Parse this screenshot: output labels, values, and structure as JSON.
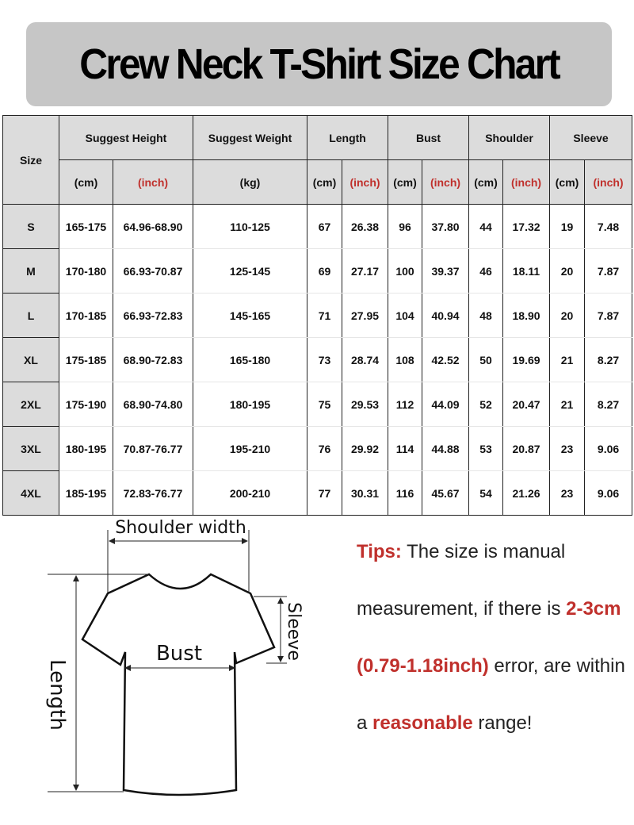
{
  "title": "Crew Neck T-Shirt Size Chart",
  "table": {
    "size_header": "Size",
    "groups": [
      "Suggest Height",
      "Suggest Weight",
      "Length",
      "Bust",
      "Shoulder",
      "Sleeve"
    ],
    "units": [
      "(cm)",
      "(inch)",
      "(kg)",
      "(cm)",
      "(inch)",
      "(cm)",
      "(inch)",
      "(cm)",
      "(inch)",
      "(cm)",
      "(inch)"
    ],
    "rows": [
      [
        "S",
        "165-175",
        "64.96-68.90",
        "110-125",
        "67",
        "26.38",
        "96",
        "37.80",
        "44",
        "17.32",
        "19",
        "7.48"
      ],
      [
        "M",
        "170-180",
        "66.93-70.87",
        "125-145",
        "69",
        "27.17",
        "100",
        "39.37",
        "46",
        "18.11",
        "20",
        "7.87"
      ],
      [
        "L",
        "170-185",
        "66.93-72.83",
        "145-165",
        "71",
        "27.95",
        "104",
        "40.94",
        "48",
        "18.90",
        "20",
        "7.87"
      ],
      [
        "XL",
        "175-185",
        "68.90-72.83",
        "165-180",
        "73",
        "28.74",
        "108",
        "42.52",
        "50",
        "19.69",
        "21",
        "8.27"
      ],
      [
        "2XL",
        "175-190",
        "68.90-74.80",
        "180-195",
        "75",
        "29.53",
        "112",
        "44.09",
        "52",
        "20.47",
        "21",
        "8.27"
      ],
      [
        "3XL",
        "180-195",
        "70.87-76.77",
        "195-210",
        "76",
        "29.92",
        "114",
        "44.88",
        "53",
        "20.87",
        "23",
        "9.06"
      ],
      [
        "4XL",
        "185-195",
        "72.83-76.77",
        "200-210",
        "77",
        "30.31",
        "116",
        "45.67",
        "54",
        "21.26",
        "23",
        "9.06"
      ]
    ]
  },
  "diagram": {
    "shoulder_label": "Shoulder width",
    "bust_label": "Bust",
    "length_label": "Length",
    "sleeve_label": "Sleeve"
  },
  "tips": {
    "label": "Tips:",
    "text1": " The size is manual measurement, if there is ",
    "highlight1": "2-3cm (0.79-1.18inch)",
    "text2": " error, are within a ",
    "highlight2": "reasonable",
    "text3": " range!"
  },
  "colors": {
    "header_bg": "#dcdcdc",
    "accent_red": "#c0302c",
    "title_bg": "#c6c6c6"
  }
}
